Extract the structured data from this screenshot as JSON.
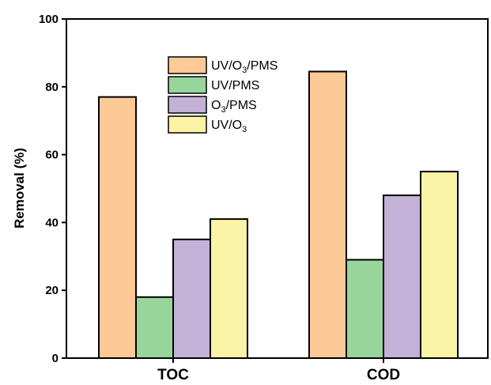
{
  "chart_data": {
    "type": "bar",
    "title": "",
    "xlabel": "",
    "ylabel": "Removal (%)",
    "ylim": [
      0,
      100
    ],
    "yticks": [
      0,
      20,
      40,
      60,
      80,
      100
    ],
    "categories": [
      "TOC",
      "COD"
    ],
    "series": [
      {
        "name": "UV/O3/PMS",
        "name_parts": [
          [
            "UV/O",
            false
          ],
          [
            "3",
            true
          ],
          [
            "/PMS",
            false
          ]
        ],
        "color": "#FDC996",
        "values": [
          77,
          84.5
        ]
      },
      {
        "name": "UV/PMS",
        "name_parts": [
          [
            "UV/PMS",
            false
          ]
        ],
        "color": "#98D59A",
        "values": [
          18,
          29
        ]
      },
      {
        "name": "O3/PMS",
        "name_parts": [
          [
            "O",
            false
          ],
          [
            "3",
            true
          ],
          [
            "/PMS",
            false
          ]
        ],
        "color": "#C3B1D8",
        "values": [
          35,
          48
        ]
      },
      {
        "name": "UV/O3",
        "name_parts": [
          [
            "UV/O",
            false
          ],
          [
            "3",
            true
          ]
        ],
        "color": "#FBF3A5",
        "values": [
          41,
          55
        ]
      }
    ],
    "grid": false,
    "legend_position": "top-center"
  }
}
